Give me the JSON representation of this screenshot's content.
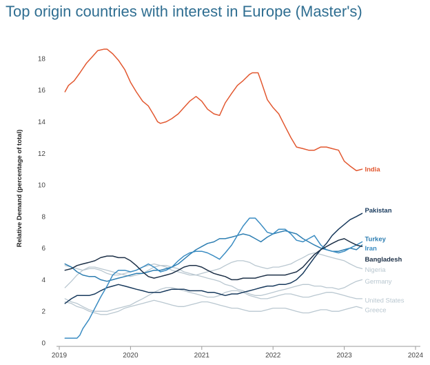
{
  "page": {
    "title": "Top origin countries with interest in Europe (Master's)"
  },
  "chart_data": {
    "type": "line",
    "title": "Top origin countries with interest in Europe (Master's)",
    "xlabel": "",
    "ylabel": "Relative Demand (percentage of total)",
    "xlim": [
      2019,
      2024
    ],
    "ylim": [
      0,
      19
    ],
    "x_ticks": [
      2019,
      2020,
      2021,
      2022,
      2023,
      2024
    ],
    "y_ticks": [
      0,
      2,
      4,
      6,
      8,
      10,
      12,
      14,
      16,
      18
    ],
    "grid": false,
    "legend": "labels at line ends",
    "series": [
      {
        "name": "India",
        "color": "#e2572f",
        "bold": true,
        "label_y": 11.0,
        "x": [
          2019.08,
          2019.13,
          2019.21,
          2019.29,
          2019.38,
          2019.46,
          2019.54,
          2019.63,
          2019.67,
          2019.75,
          2019.83,
          2019.92,
          2020.0,
          2020.08,
          2020.17,
          2020.25,
          2020.33,
          2020.38,
          2020.42,
          2020.5,
          2020.58,
          2020.67,
          2020.75,
          2020.83,
          2020.92,
          2021.0,
          2021.08,
          2021.17,
          2021.25,
          2021.33,
          2021.42,
          2021.5,
          2021.58,
          2021.67,
          2021.71,
          2021.79,
          2021.83,
          2021.92,
          2022.0,
          2022.08,
          2022.17,
          2022.25,
          2022.33,
          2022.42,
          2022.5,
          2022.58,
          2022.67,
          2022.75,
          2022.83,
          2022.92,
          2023.0,
          2023.08,
          2023.17,
          2023.25
        ],
        "y": [
          15.9,
          16.3,
          16.6,
          17.1,
          17.7,
          18.1,
          18.5,
          18.6,
          18.6,
          18.3,
          17.9,
          17.3,
          16.5,
          15.9,
          15.3,
          15.0,
          14.4,
          14.0,
          13.9,
          14.0,
          14.2,
          14.5,
          14.9,
          15.3,
          15.6,
          15.3,
          14.8,
          14.5,
          14.4,
          15.2,
          15.8,
          16.3,
          16.6,
          17.0,
          17.1,
          17.1,
          16.6,
          15.4,
          14.9,
          14.5,
          13.7,
          13.0,
          12.4,
          12.3,
          12.2,
          12.2,
          12.4,
          12.4,
          12.3,
          12.2,
          11.5,
          11.2,
          10.9,
          11.0
        ]
      },
      {
        "name": "Pakistan",
        "color": "#17395c",
        "bold": true,
        "label_y": 8.4,
        "x": [
          2019.08,
          2019.17,
          2019.25,
          2019.33,
          2019.42,
          2019.5,
          2019.58,
          2019.67,
          2019.75,
          2019.83,
          2019.92,
          2020.0,
          2020.08,
          2020.17,
          2020.25,
          2020.33,
          2020.42,
          2020.5,
          2020.58,
          2020.67,
          2020.75,
          2020.83,
          2020.92,
          2021.0,
          2021.08,
          2021.17,
          2021.25,
          2021.33,
          2021.42,
          2021.5,
          2021.58,
          2021.67,
          2021.75,
          2021.83,
          2021.92,
          2022.0,
          2022.08,
          2022.17,
          2022.25,
          2022.33,
          2022.42,
          2022.5,
          2022.58,
          2022.67,
          2022.75,
          2022.83,
          2022.92,
          2023.0,
          2023.08,
          2023.17,
          2023.25
        ],
        "y": [
          2.5,
          2.8,
          3.0,
          3.0,
          3.0,
          3.1,
          3.3,
          3.5,
          3.6,
          3.7,
          3.6,
          3.5,
          3.4,
          3.3,
          3.2,
          3.2,
          3.2,
          3.3,
          3.4,
          3.4,
          3.4,
          3.3,
          3.3,
          3.3,
          3.2,
          3.2,
          3.1,
          3.0,
          3.1,
          3.1,
          3.2,
          3.3,
          3.4,
          3.5,
          3.6,
          3.6,
          3.7,
          3.7,
          3.8,
          4.0,
          4.4,
          4.9,
          5.4,
          5.9,
          6.3,
          6.8,
          7.2,
          7.5,
          7.8,
          8.0,
          8.2
        ]
      },
      {
        "name": "Turkey",
        "color": "#2c7db1",
        "bold": true,
        "label_y": 6.6,
        "x": [
          2019.08,
          2019.17,
          2019.25,
          2019.33,
          2019.42,
          2019.5,
          2019.58,
          2019.67,
          2019.75,
          2019.83,
          2019.92,
          2020.0,
          2020.08,
          2020.17,
          2020.25,
          2020.33,
          2020.42,
          2020.5,
          2020.58,
          2020.67,
          2020.75,
          2020.83,
          2020.92,
          2021.0,
          2021.08,
          2021.17,
          2021.25,
          2021.33,
          2021.42,
          2021.5,
          2021.58,
          2021.67,
          2021.75,
          2021.83,
          2021.92,
          2022.0,
          2022.08,
          2022.17,
          2022.25,
          2022.33,
          2022.42,
          2022.5,
          2022.58,
          2022.67,
          2022.75,
          2022.83,
          2022.92,
          2023.0,
          2023.08,
          2023.17,
          2023.25
        ],
        "y": [
          5.0,
          4.8,
          4.5,
          4.3,
          4.2,
          4.2,
          4.0,
          3.9,
          4.0,
          4.1,
          4.2,
          4.3,
          4.4,
          4.4,
          4.5,
          4.6,
          4.6,
          4.7,
          4.8,
          5.0,
          5.3,
          5.6,
          5.9,
          6.1,
          6.3,
          6.4,
          6.6,
          6.6,
          6.7,
          6.8,
          6.9,
          6.8,
          6.6,
          6.4,
          6.7,
          6.9,
          7.0,
          7.1,
          7.0,
          6.9,
          6.6,
          6.4,
          6.2,
          6.0,
          5.9,
          5.8,
          5.8,
          5.9,
          6.0,
          5.9,
          6.2
        ]
      },
      {
        "name": "Iran",
        "color": "#3a8cc2",
        "bold": true,
        "label_y": 6.0,
        "x": [
          2019.08,
          2019.17,
          2019.25,
          2019.29,
          2019.33,
          2019.42,
          2019.5,
          2019.58,
          2019.67,
          2019.75,
          2019.83,
          2019.92,
          2020.0,
          2020.08,
          2020.17,
          2020.25,
          2020.33,
          2020.42,
          2020.5,
          2020.58,
          2020.67,
          2020.75,
          2020.83,
          2020.92,
          2021.0,
          2021.08,
          2021.17,
          2021.25,
          2021.33,
          2021.42,
          2021.5,
          2021.58,
          2021.67,
          2021.75,
          2021.83,
          2021.92,
          2022.0,
          2022.08,
          2022.17,
          2022.25,
          2022.33,
          2022.42,
          2022.5,
          2022.58,
          2022.67,
          2022.75,
          2022.83,
          2022.92,
          2023.0,
          2023.08,
          2023.17,
          2023.25
        ],
        "y": [
          0.3,
          0.3,
          0.3,
          0.5,
          0.9,
          1.5,
          2.2,
          2.9,
          3.6,
          4.3,
          4.6,
          4.6,
          4.5,
          4.6,
          4.8,
          5.0,
          4.8,
          4.5,
          4.6,
          4.8,
          5.2,
          5.5,
          5.7,
          5.8,
          5.8,
          5.7,
          5.5,
          5.3,
          5.7,
          6.2,
          6.8,
          7.4,
          7.9,
          7.9,
          7.5,
          7.0,
          6.9,
          7.2,
          7.2,
          6.9,
          6.5,
          6.4,
          6.6,
          6.8,
          6.2,
          5.9,
          5.8,
          5.7,
          5.8,
          6.0,
          6.2,
          6.4
        ]
      },
      {
        "name": "Bangladesh",
        "color": "#1d3047",
        "bold": true,
        "label_y": 5.3,
        "x": [
          2019.08,
          2019.17,
          2019.25,
          2019.33,
          2019.42,
          2019.5,
          2019.58,
          2019.67,
          2019.75,
          2019.83,
          2019.92,
          2020.0,
          2020.08,
          2020.17,
          2020.25,
          2020.33,
          2020.42,
          2020.5,
          2020.58,
          2020.67,
          2020.75,
          2020.83,
          2020.92,
          2021.0,
          2021.08,
          2021.17,
          2021.25,
          2021.33,
          2021.42,
          2021.5,
          2021.58,
          2021.67,
          2021.75,
          2021.83,
          2021.92,
          2022.0,
          2022.08,
          2022.17,
          2022.25,
          2022.33,
          2022.42,
          2022.5,
          2022.58,
          2022.67,
          2022.75,
          2022.83,
          2022.92,
          2023.0,
          2023.08,
          2023.17,
          2023.25
        ],
        "y": [
          4.6,
          4.7,
          4.9,
          5.0,
          5.1,
          5.2,
          5.4,
          5.5,
          5.5,
          5.4,
          5.4,
          5.2,
          4.9,
          4.5,
          4.2,
          4.1,
          4.2,
          4.3,
          4.4,
          4.6,
          4.8,
          4.9,
          4.9,
          4.8,
          4.6,
          4.4,
          4.3,
          4.2,
          4.0,
          4.0,
          4.1,
          4.1,
          4.1,
          4.2,
          4.3,
          4.3,
          4.3,
          4.3,
          4.4,
          4.5,
          4.8,
          5.2,
          5.6,
          5.9,
          6.1,
          6.3,
          6.5,
          6.6,
          6.4,
          6.2,
          6.1
        ]
      },
      {
        "name": "Nigeria",
        "color": "#b9c7d0",
        "bold": false,
        "label_y": 4.65,
        "x": [
          2019.08,
          2019.17,
          2019.25,
          2019.33,
          2019.42,
          2019.5,
          2019.58,
          2019.67,
          2019.75,
          2019.83,
          2019.92,
          2020.0,
          2020.08,
          2020.17,
          2020.25,
          2020.33,
          2020.42,
          2020.5,
          2020.58,
          2020.67,
          2020.75,
          2020.83,
          2020.92,
          2021.0,
          2021.08,
          2021.17,
          2021.25,
          2021.33,
          2021.42,
          2021.5,
          2021.58,
          2021.67,
          2021.75,
          2021.83,
          2021.92,
          2022.0,
          2022.08,
          2022.17,
          2022.25,
          2022.33,
          2022.42,
          2022.5,
          2022.58,
          2022.67,
          2022.75,
          2022.83,
          2022.92,
          2023.0,
          2023.08,
          2023.17,
          2023.25
        ],
        "y": [
          4.9,
          4.8,
          4.7,
          4.6,
          4.7,
          4.7,
          4.6,
          4.4,
          4.3,
          4.3,
          4.4,
          4.5,
          4.6,
          4.8,
          4.9,
          5.0,
          4.9,
          4.8,
          4.6,
          4.5,
          4.4,
          4.3,
          4.3,
          4.4,
          4.5,
          4.6,
          4.7,
          4.9,
          5.1,
          5.2,
          5.2,
          5.1,
          4.9,
          4.8,
          4.7,
          4.8,
          4.8,
          4.9,
          5.0,
          5.2,
          5.4,
          5.6,
          5.7,
          5.6,
          5.5,
          5.4,
          5.3,
          5.2,
          5.0,
          4.8,
          4.7
        ]
      },
      {
        "name": "Germany",
        "color": "#b9c7d0",
        "bold": false,
        "label_y": 3.9,
        "x": [
          2019.08,
          2019.17,
          2019.25,
          2019.33,
          2019.42,
          2019.5,
          2019.58,
          2019.67,
          2019.75,
          2019.83,
          2019.92,
          2020.0,
          2020.08,
          2020.17,
          2020.25,
          2020.33,
          2020.42,
          2020.5,
          2020.58,
          2020.67,
          2020.75,
          2020.83,
          2020.92,
          2021.0,
          2021.08,
          2021.17,
          2021.25,
          2021.33,
          2021.42,
          2021.5,
          2021.58,
          2021.67,
          2021.75,
          2021.83,
          2021.92,
          2022.0,
          2022.08,
          2022.17,
          2022.25,
          2022.33,
          2022.42,
          2022.5,
          2022.58,
          2022.67,
          2022.75,
          2022.83,
          2022.92,
          2023.0,
          2023.08,
          2023.17,
          2023.25
        ],
        "y": [
          3.5,
          3.9,
          4.3,
          4.6,
          4.8,
          4.8,
          4.7,
          4.6,
          4.5,
          4.4,
          4.3,
          4.2,
          4.3,
          4.4,
          4.6,
          4.8,
          4.9,
          4.9,
          4.8,
          4.7,
          4.5,
          4.4,
          4.3,
          4.2,
          4.1,
          4.0,
          3.9,
          3.7,
          3.6,
          3.4,
          3.3,
          3.1,
          3.0,
          3.0,
          3.1,
          3.2,
          3.3,
          3.4,
          3.5,
          3.6,
          3.7,
          3.7,
          3.6,
          3.6,
          3.5,
          3.5,
          3.4,
          3.5,
          3.7,
          3.9,
          4.0
        ]
      },
      {
        "name": "United States",
        "color": "#b9c7d0",
        "bold": false,
        "label_y": 2.7,
        "x": [
          2019.08,
          2019.17,
          2019.25,
          2019.33,
          2019.42,
          2019.5,
          2019.58,
          2019.67,
          2019.75,
          2019.83,
          2019.92,
          2020.0,
          2020.08,
          2020.17,
          2020.25,
          2020.33,
          2020.42,
          2020.5,
          2020.58,
          2020.67,
          2020.75,
          2020.83,
          2020.92,
          2021.0,
          2021.08,
          2021.17,
          2021.25,
          2021.33,
          2021.42,
          2021.5,
          2021.58,
          2021.67,
          2021.75,
          2021.83,
          2021.92,
          2022.0,
          2022.08,
          2022.17,
          2022.25,
          2022.33,
          2022.42,
          2022.5,
          2022.58,
          2022.67,
          2022.75,
          2022.83,
          2022.92,
          2023.0,
          2023.08,
          2023.17,
          2023.25
        ],
        "y": [
          2.8,
          2.6,
          2.5,
          2.3,
          2.1,
          2.0,
          2.0,
          2.0,
          2.1,
          2.2,
          2.3,
          2.4,
          2.6,
          2.8,
          3.0,
          3.2,
          3.4,
          3.5,
          3.5,
          3.4,
          3.3,
          3.2,
          3.1,
          3.0,
          2.9,
          2.9,
          3.0,
          3.2,
          3.3,
          3.3,
          3.2,
          3.0,
          2.9,
          2.8,
          2.8,
          2.9,
          3.0,
          3.1,
          3.1,
          3.0,
          2.9,
          2.9,
          3.0,
          3.1,
          3.2,
          3.2,
          3.1,
          3.0,
          2.9,
          2.8,
          2.8
        ]
      },
      {
        "name": "Greece",
        "color": "#b9c7d0",
        "bold": false,
        "label_y": 2.1,
        "x": [
          2019.08,
          2019.17,
          2019.25,
          2019.33,
          2019.42,
          2019.5,
          2019.58,
          2019.67,
          2019.75,
          2019.83,
          2019.92,
          2020.0,
          2020.08,
          2020.17,
          2020.25,
          2020.33,
          2020.42,
          2020.5,
          2020.58,
          2020.67,
          2020.75,
          2020.83,
          2020.92,
          2021.0,
          2021.08,
          2021.17,
          2021.25,
          2021.33,
          2021.42,
          2021.5,
          2021.58,
          2021.67,
          2021.75,
          2021.83,
          2021.92,
          2022.0,
          2022.08,
          2022.17,
          2022.25,
          2022.33,
          2022.42,
          2022.5,
          2022.58,
          2022.67,
          2022.75,
          2022.83,
          2022.92,
          2023.0,
          2023.08,
          2023.17,
          2023.25
        ],
        "y": [
          2.6,
          2.5,
          2.3,
          2.2,
          2.0,
          1.9,
          1.8,
          1.8,
          1.9,
          2.0,
          2.2,
          2.3,
          2.4,
          2.5,
          2.6,
          2.7,
          2.6,
          2.5,
          2.4,
          2.3,
          2.3,
          2.4,
          2.5,
          2.6,
          2.6,
          2.5,
          2.4,
          2.3,
          2.2,
          2.2,
          2.1,
          2.0,
          2.0,
          2.0,
          2.1,
          2.2,
          2.2,
          2.2,
          2.1,
          2.0,
          1.9,
          1.9,
          2.0,
          2.1,
          2.1,
          2.0,
          2.0,
          2.1,
          2.2,
          2.3,
          2.2
        ]
      }
    ]
  }
}
